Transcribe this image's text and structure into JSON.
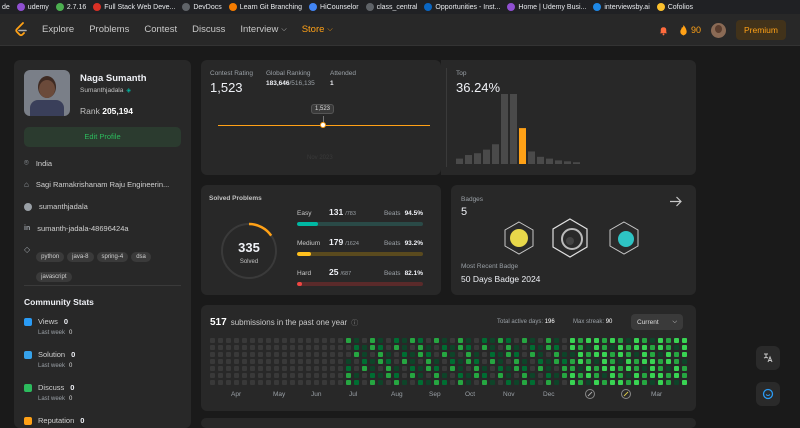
{
  "bookmarks": [
    {
      "label": "de",
      "color": "#202124"
    },
    {
      "label": "udemy",
      "color": "#8f4fd1"
    },
    {
      "label": "2.7.16",
      "color": "#4caf50"
    },
    {
      "label": "Full Stack Web Deve...",
      "color": "#d93025"
    },
    {
      "label": "DevDocs",
      "color": "#5f6368"
    },
    {
      "label": "Learn Git Branching",
      "color": "#f57c00"
    },
    {
      "label": "HiCounselor",
      "color": "#4285f4"
    },
    {
      "label": "class_central",
      "color": "#5f6368"
    },
    {
      "label": "Opportunities - Inst...",
      "color": "#0a66c2"
    },
    {
      "label": "Home | Udemy Busi...",
      "color": "#8f4fd1"
    },
    {
      "label": "interviewsby.ai",
      "color": "#1e88e5"
    },
    {
      "label": "Cofolios",
      "color": "#fbc02d"
    }
  ],
  "nav": {
    "links": [
      "Explore",
      "Problems",
      "Contest",
      "Discuss",
      "Interview"
    ],
    "store": "Store",
    "streak": "90",
    "premium": "Premium"
  },
  "profile": {
    "name": "Naga Sumanth",
    "username": "Sumanthjadala",
    "rank_label": "Rank",
    "rank_value": "205,194",
    "edit": "Edit Profile",
    "location": "India",
    "school": "Sagi Ramakrishanam Raju Engineerin...",
    "github": "sumanthjadala",
    "linkedin": "sumanth-jadala-48696424a",
    "skills": [
      "python",
      "java-8",
      "spring-4",
      "dsa",
      "javascript"
    ]
  },
  "community": {
    "title": "Community Stats",
    "items": [
      {
        "label": "Views",
        "value": "0",
        "sub": "Last week",
        "val2": "0",
        "color": "#2a9bf5"
      },
      {
        "label": "Solution",
        "value": "0",
        "sub": "Last week",
        "val2": "0",
        "color": "#36a2eb"
      },
      {
        "label": "Discuss",
        "value": "0",
        "sub": "Last week",
        "val2": "0",
        "color": "#2cbb5d"
      },
      {
        "label": "Reputation",
        "value": "0",
        "sub": "",
        "val2": "",
        "color": "#ffa116"
      }
    ]
  },
  "contest": {
    "rating_label": "Contest Rating",
    "rating": "1,523",
    "global_label": "Global Ranking",
    "global_value": "183,646",
    "global_total": "/516,135",
    "attended_label": "Attended",
    "attended": "1",
    "tooltip": "1,523",
    "faint_date": "Nov 2023",
    "top_label": "Top",
    "top_value": "36.24%",
    "hist": [
      6,
      10,
      12,
      16,
      22,
      78,
      78,
      40,
      14,
      8,
      6,
      4,
      3,
      2
    ]
  },
  "solved": {
    "title": "Solved Problems",
    "total": "335",
    "label": "Solved",
    "rows": [
      {
        "level": "Easy",
        "count": "131",
        "total": "/783",
        "beats_label": "Beats",
        "beats": "94.5%",
        "color": "#00b8a3",
        "bg": "#2a4a47",
        "frac": 0.167
      },
      {
        "level": "Medium",
        "count": "179",
        "total": "/1624",
        "beats_label": "Beats",
        "beats": "93.2%",
        "color": "#ffc01e",
        "bg": "#5a4a1e",
        "frac": 0.11
      },
      {
        "level": "Hard",
        "count": "25",
        "total": "/687",
        "beats_label": "Beats",
        "beats": "82.1%",
        "color": "#ef4743",
        "bg": "#5a2a2a",
        "frac": 0.036
      }
    ]
  },
  "badges": {
    "title": "Badges",
    "count": "5",
    "recent_label": "Most Recent Badge",
    "recent": "50 Days Badge 2024"
  },
  "submissions": {
    "count": "517",
    "text": "submissions in the past one year",
    "active_label": "Total active days:",
    "active": "196",
    "streak_label": "Max streak:",
    "streak": "90",
    "dropdown": "Current",
    "months": [
      "Apr",
      "May",
      "Jun",
      "Jul",
      "Aug",
      "Sep",
      "Oct",
      "Nov",
      "Dec",
      "",
      "",
      "Mar"
    ]
  }
}
